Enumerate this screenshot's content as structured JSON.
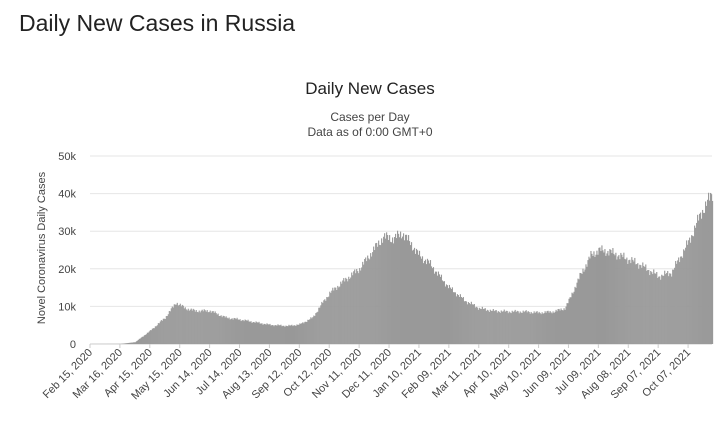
{
  "page": {
    "heading": "Daily New Cases in Russia"
  },
  "chart_data": {
    "type": "bar",
    "title": "Daily New Cases",
    "subtitle_1": "Cases per Day",
    "subtitle_2": "Data as of 0:00 GMT+0",
    "ylabel": "Novel Coronavirus Daily Cases",
    "xlabel": "",
    "ylim": [
      0,
      50000
    ],
    "y_ticks": [
      {
        "value": 0,
        "label": "0"
      },
      {
        "value": 10000,
        "label": "10k"
      },
      {
        "value": 20000,
        "label": "20k"
      },
      {
        "value": 30000,
        "label": "30k"
      },
      {
        "value": 40000,
        "label": "40k"
      },
      {
        "value": 50000,
        "label": "50k"
      }
    ],
    "x_tick_labels": [
      "Feb 15, 2020",
      "Mar 16, 2020",
      "Apr 15, 2020",
      "May 15, 2020",
      "Jun 14, 2020",
      "Jul 14, 2020",
      "Aug 13, 2020",
      "Sep 12, 2020",
      "Oct 12, 2020",
      "Nov 11, 2020",
      "Dec 11, 2020",
      "Jan 10, 2021",
      "Feb 09, 2021",
      "Mar 11, 2021",
      "Apr 10, 2021",
      "May 10, 2021",
      "Jun 09, 2021",
      "Jul 09, 2021",
      "Aug 08, 2021",
      "Sep 07, 2021",
      "Oct 07, 2021"
    ],
    "x_range": [
      "Feb 15, 2020",
      "Oct 31, 2021"
    ],
    "grid": true,
    "bar_color": "#999999",
    "series": [
      {
        "points": [
          [
            "Feb 15, 2020",
            0
          ],
          [
            "Mar 16, 2020",
            20
          ],
          [
            "Mar 31, 2020",
            500
          ],
          [
            "Apr 15, 2020",
            3500
          ],
          [
            "Apr 30, 2020",
            7000
          ],
          [
            "May 11, 2020",
            11000
          ],
          [
            "May 20, 2020",
            9500
          ],
          [
            "May 30, 2020",
            8800
          ],
          [
            "Jun 14, 2020",
            8800
          ],
          [
            "Jun 30, 2020",
            7000
          ],
          [
            "Jul 14, 2020",
            6500
          ],
          [
            "Jul 31, 2020",
            5700
          ],
          [
            "Aug 13, 2020",
            5100
          ],
          [
            "Aug 31, 2020",
            4800
          ],
          [
            "Sep 12, 2020",
            5200
          ],
          [
            "Sep 25, 2020",
            7000
          ],
          [
            "Oct 05, 2020",
            11000
          ],
          [
            "Oct 12, 2020",
            13500
          ],
          [
            "Oct 25, 2020",
            16500
          ],
          [
            "Nov 11, 2020",
            20000
          ],
          [
            "Nov 25, 2020",
            25000
          ],
          [
            "Dec 05, 2020",
            28500
          ],
          [
            "Dec 15, 2020",
            28000
          ],
          [
            "Dec 24, 2020",
            29500
          ],
          [
            "Jan 02, 2021",
            26500
          ],
          [
            "Jan 10, 2021",
            23500
          ],
          [
            "Jan 20, 2021",
            21500
          ],
          [
            "Feb 01, 2021",
            17500
          ],
          [
            "Feb 09, 2021",
            15000
          ],
          [
            "Feb 25, 2021",
            11500
          ],
          [
            "Mar 11, 2021",
            9500
          ],
          [
            "Mar 25, 2021",
            8800
          ],
          [
            "Apr 10, 2021",
            8600
          ],
          [
            "Apr 25, 2021",
            8600
          ],
          [
            "May 10, 2021",
            8300
          ],
          [
            "May 25, 2021",
            8600
          ],
          [
            "Jun 05, 2021",
            9500
          ],
          [
            "Jun 09, 2021",
            11500
          ],
          [
            "Jun 20, 2021",
            18000
          ],
          [
            "Jul 01, 2021",
            23500
          ],
          [
            "Jul 09, 2021",
            25000
          ],
          [
            "Jul 20, 2021",
            24500
          ],
          [
            "Aug 08, 2021",
            22500
          ],
          [
            "Aug 20, 2021",
            21000
          ],
          [
            "Sep 07, 2021",
            18000
          ],
          [
            "Sep 20, 2021",
            19000
          ],
          [
            "Oct 07, 2021",
            27000
          ],
          [
            "Oct 20, 2021",
            35000
          ],
          [
            "Oct 31, 2021",
            40000
          ]
        ]
      }
    ]
  }
}
